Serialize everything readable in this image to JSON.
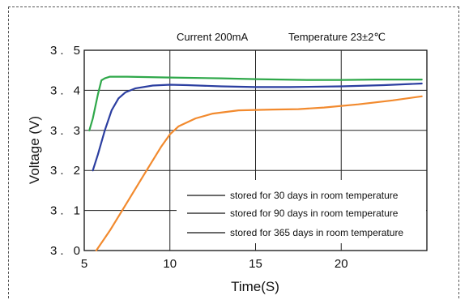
{
  "chart_data": {
    "type": "line",
    "title": "",
    "conditions": {
      "current": "Current  200mA",
      "temperature": "Temperature  23±2℃"
    },
    "xlabel": "Time(S)",
    "ylabel": "Voltage (V)",
    "xlim": [
      5,
      25
    ],
    "ylim": [
      3.0,
      3.5
    ],
    "xticks": [
      5,
      10,
      15,
      20
    ],
    "xtick_labels": [
      "5",
      "10",
      "15",
      "20"
    ],
    "yticks": [
      3.0,
      3.1,
      3.2,
      3.3,
      3.4,
      3.5
    ],
    "ytick_labels": [
      "3. 0",
      "3. 1",
      "3. 2",
      "3. 3",
      "3. 4",
      "3. 5"
    ],
    "grid": true,
    "legend_position": "bottom-right",
    "series": [
      {
        "name": "stored for 30 days in room temperature",
        "color": "#2fa84a",
        "points": [
          [
            5.3,
            3.3
          ],
          [
            5.5,
            3.33
          ],
          [
            5.8,
            3.39
          ],
          [
            6.0,
            3.425
          ],
          [
            6.2,
            3.43
          ],
          [
            6.5,
            3.434
          ],
          [
            7.5,
            3.434
          ],
          [
            10,
            3.432
          ],
          [
            13,
            3.43
          ],
          [
            15,
            3.428
          ],
          [
            18,
            3.426
          ],
          [
            20,
            3.426
          ],
          [
            22,
            3.427
          ],
          [
            24.7,
            3.427
          ]
        ]
      },
      {
        "name": "stored for 90 days in room temperature",
        "color": "#2b3ea0",
        "points": [
          [
            5.5,
            3.2
          ],
          [
            5.8,
            3.24
          ],
          [
            6.2,
            3.3
          ],
          [
            6.6,
            3.35
          ],
          [
            7.0,
            3.38
          ],
          [
            7.4,
            3.395
          ],
          [
            8.0,
            3.405
          ],
          [
            9.0,
            3.412
          ],
          [
            10,
            3.414
          ],
          [
            11,
            3.413
          ],
          [
            13,
            3.41
          ],
          [
            15,
            3.408
          ],
          [
            17,
            3.408
          ],
          [
            20,
            3.41
          ],
          [
            22.5,
            3.413
          ],
          [
            24.7,
            3.417
          ]
        ]
      },
      {
        "name": "stored for 365 days in room temperature",
        "color": "#f28a2e",
        "points": [
          [
            5.7,
            3.0
          ],
          [
            6.5,
            3.05
          ],
          [
            7.5,
            3.12
          ],
          [
            8.5,
            3.19
          ],
          [
            9.5,
            3.26
          ],
          [
            10,
            3.29
          ],
          [
            10.5,
            3.31
          ],
          [
            11.5,
            3.33
          ],
          [
            12.5,
            3.342
          ],
          [
            14,
            3.35
          ],
          [
            16,
            3.352
          ],
          [
            17.5,
            3.353
          ],
          [
            19,
            3.357
          ],
          [
            21,
            3.365
          ],
          [
            23,
            3.375
          ],
          [
            24.7,
            3.385
          ]
        ]
      }
    ]
  }
}
